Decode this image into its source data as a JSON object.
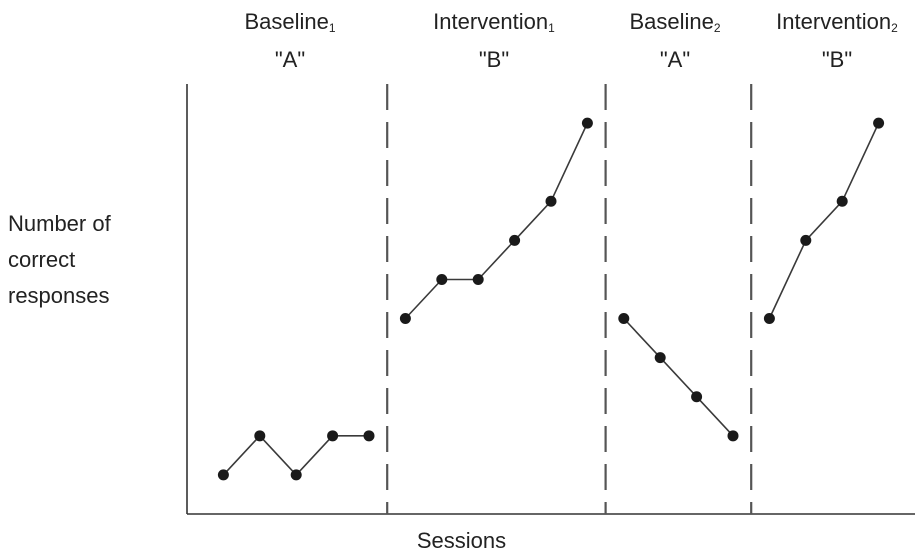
{
  "chart_data": {
    "type": "line",
    "xlabel": "Sessions",
    "ylabel_lines": [
      "Number of",
      "correct",
      "responses"
    ],
    "phases": [
      {
        "name": "Baseline",
        "subscript": "1",
        "code": "\"A\"",
        "x": [
          1,
          2,
          3,
          4,
          5
        ],
        "y": [
          1,
          2,
          1,
          2,
          2
        ]
      },
      {
        "name": "Intervention",
        "subscript": "1",
        "code": "\"B\"",
        "x": [
          6,
          7,
          8,
          9,
          10,
          11
        ],
        "y": [
          5,
          6,
          6,
          7,
          8,
          10
        ]
      },
      {
        "name": "Baseline",
        "subscript": "2",
        "code": "\"A\"",
        "x": [
          12,
          13,
          14,
          15
        ],
        "y": [
          5,
          4,
          3,
          2
        ]
      },
      {
        "name": "Intervention",
        "subscript": "2",
        "code": "\"B\"",
        "x": [
          16,
          17,
          18,
          19
        ],
        "y": [
          5,
          7,
          8,
          10
        ]
      }
    ],
    "phase_change_lines": [
      5.5,
      11.5,
      15.5
    ],
    "xlim": [
      0,
      20
    ],
    "ylim": [
      0,
      11
    ],
    "grid": false,
    "ticks": false,
    "legend": "none",
    "colors": {
      "line": "#3a3a3a",
      "marker": "#1a1a1a",
      "divider": "#555555",
      "axis": "#333333"
    }
  }
}
